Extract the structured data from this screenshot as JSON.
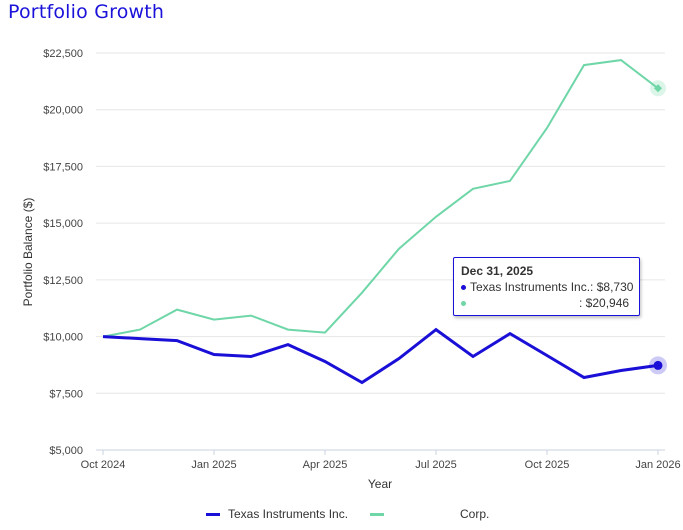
{
  "page": {
    "title": "Portfolio Growth"
  },
  "colors": {
    "title": "#1a12d9",
    "series_ti": "#1a0fd6",
    "series_corp": "#6fd6a8",
    "grid": "#e6e6e6"
  },
  "chart_data": {
    "type": "line",
    "title": "Portfolio Growth",
    "xlabel": "Year",
    "ylabel": "Portfolio Balance ($)",
    "ylim": [
      5000,
      22500
    ],
    "yticks": [
      5000,
      7500,
      10000,
      12500,
      15000,
      17500,
      20000,
      22500
    ],
    "ytick_labels": [
      "$5,000",
      "$7,500",
      "$10,000",
      "$12,500",
      "$15,000",
      "$17,500",
      "$20,000",
      "$22,500"
    ],
    "xticks": [
      "Oct 2024",
      "Jan 2025",
      "Apr 2025",
      "Jul 2025",
      "Oct 2025",
      "Jan 2026"
    ],
    "xtick_positions": [
      0,
      3,
      6,
      9,
      12,
      15
    ],
    "x": [
      "Oct 2024",
      "Nov 2024",
      "Dec 2024",
      "Jan 2025",
      "Feb 2025",
      "Mar 2025",
      "Apr 2025",
      "May 2025",
      "Jun 2025",
      "Jul 2025",
      "Aug 2025",
      "Sep 2025",
      "Oct 2025",
      "Nov 2025",
      "Dec 2025",
      "Dec 31, 2025"
    ],
    "grid": true,
    "legend_position": "bottom-center",
    "series": [
      {
        "name": "Texas Instruments Inc.",
        "color": "#1a0fd6",
        "values": [
          10000,
          9912,
          9824,
          9208,
          9120,
          9648,
          8900,
          7976,
          9032,
          10308,
          9120,
          10132,
          9164,
          8196,
          8504,
          8730
        ]
      },
      {
        "name": "Corp.",
        "color": "#6fd6a8",
        "values": [
          10000,
          10308,
          11188,
          10748,
          10924,
          10308,
          10176,
          11936,
          13872,
          15280,
          16512,
          16864,
          19196,
          21968,
          22188,
          20946
        ]
      }
    ]
  },
  "legend": {
    "items": [
      {
        "label": "Texas Instruments Inc."
      },
      {
        "label": "Corp."
      }
    ]
  },
  "tooltip": {
    "date": "Dec 31, 2025",
    "rows": [
      {
        "label": "Texas Instruments Inc.: $8,730"
      },
      {
        "label": ": $20,946"
      }
    ]
  }
}
